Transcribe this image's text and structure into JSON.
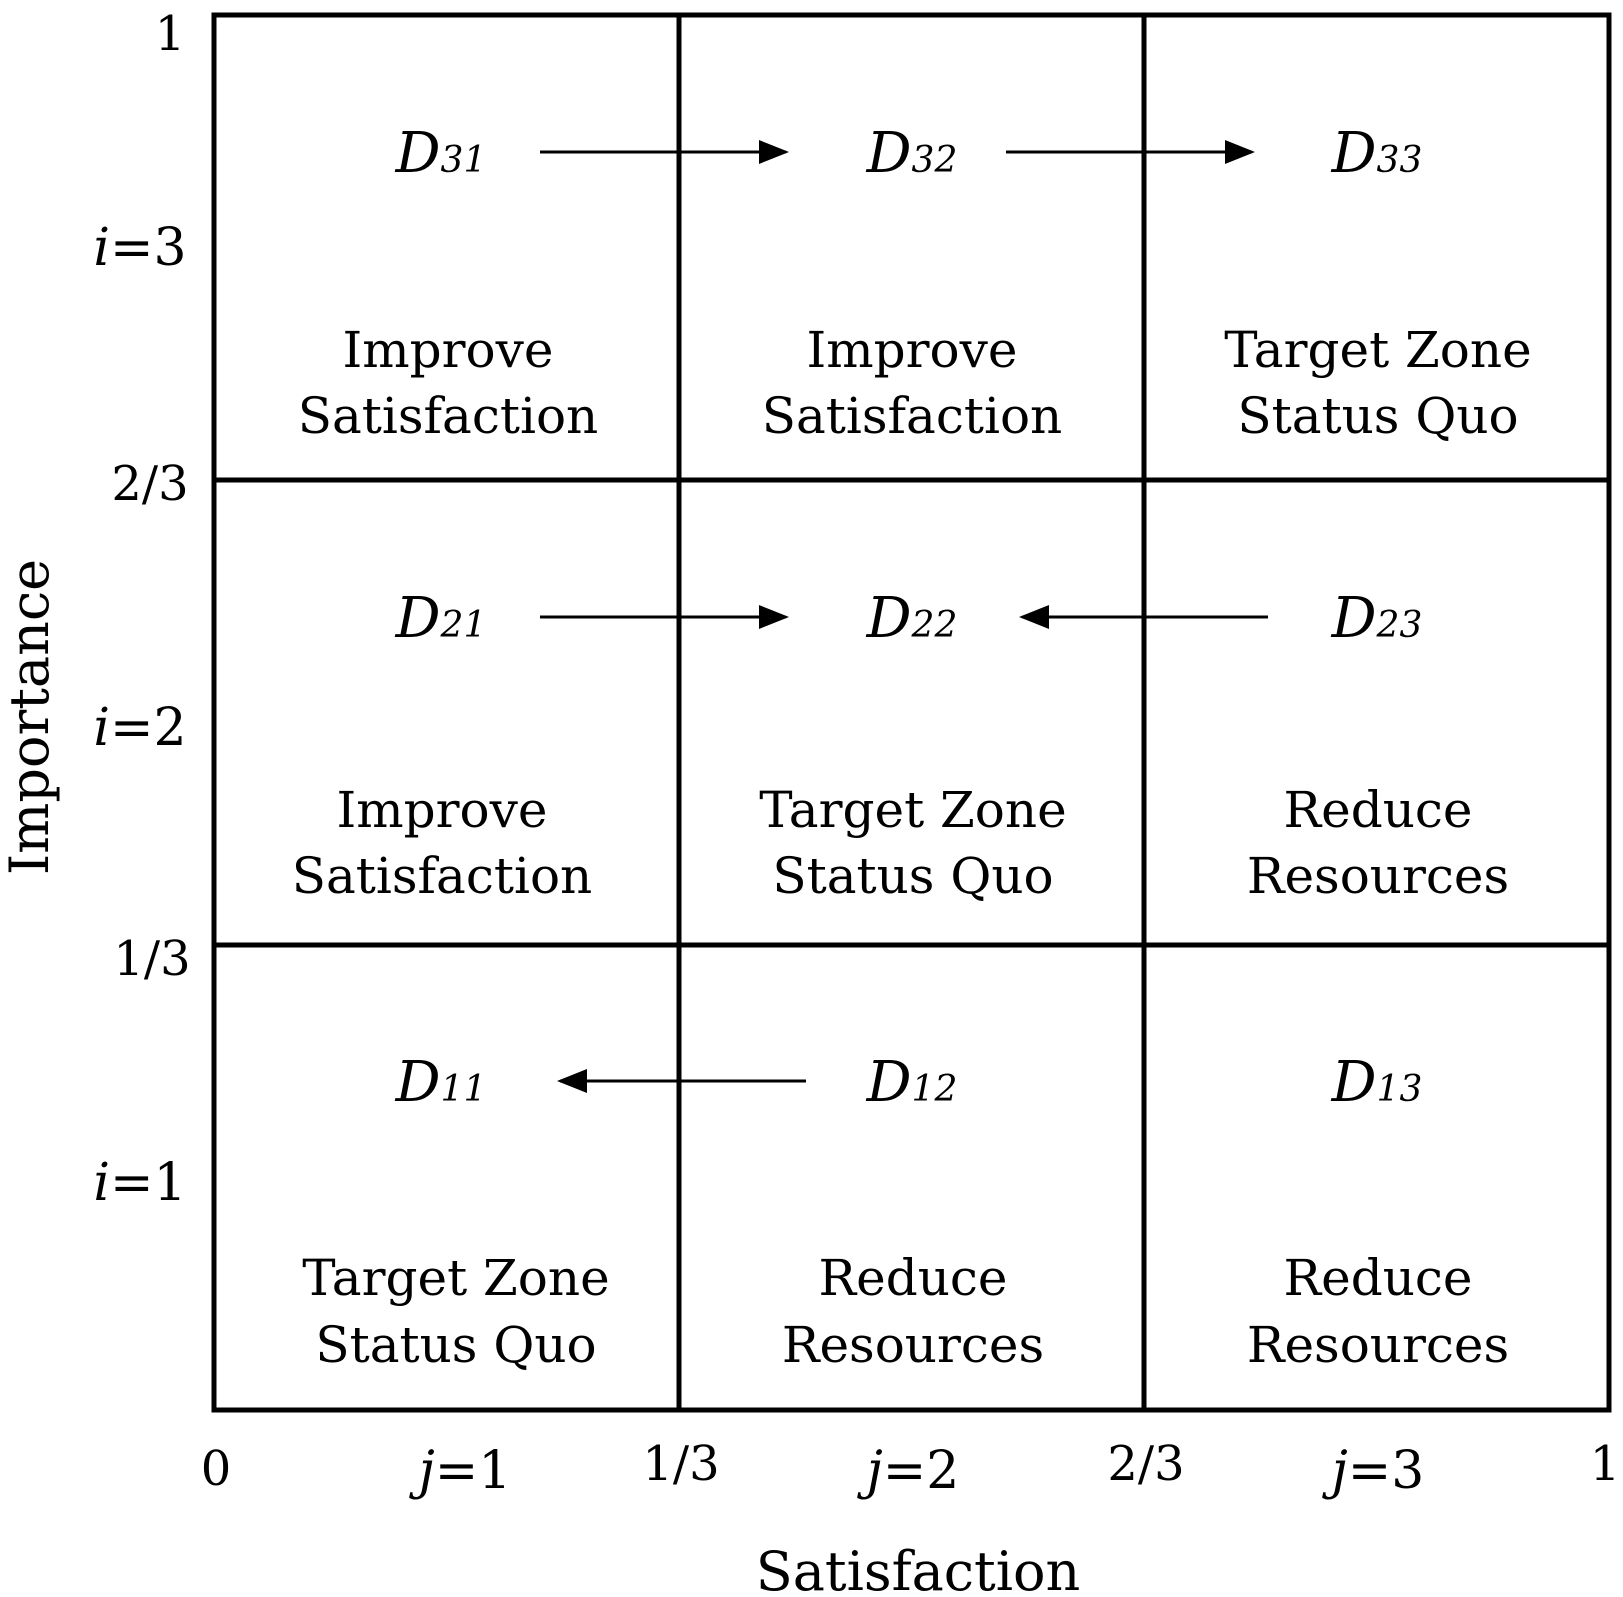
{
  "axes": {
    "x_title": "Satisfaction",
    "y_title": "Importance",
    "x_ticks": [
      "0",
      "1/3",
      "2/3",
      "1"
    ],
    "y_ticks": [
      "1",
      "2/3",
      "1/3"
    ],
    "x_index": [
      {
        "var": "j",
        "eq": "=1"
      },
      {
        "var": "j",
        "eq": "=2"
      },
      {
        "var": "j",
        "eq": "=3"
      }
    ],
    "y_index": [
      {
        "var": "i",
        "eq": "=3"
      },
      {
        "var": "i",
        "eq": "=2"
      },
      {
        "var": "i",
        "eq": "=1"
      }
    ]
  },
  "grid": {
    "rows": [
      [
        {
          "id": "D",
          "sub": "31",
          "line1": "Improve",
          "line2": "Satisfaction"
        },
        {
          "id": "D",
          "sub": "32",
          "line1": "Improve",
          "line2": "Satisfaction"
        },
        {
          "id": "D",
          "sub": "33",
          "line1": "Target Zone",
          "line2": "Status Quo"
        }
      ],
      [
        {
          "id": "D",
          "sub": "21",
          "line1": "Improve",
          "line2": "Satisfaction"
        },
        {
          "id": "D",
          "sub": "22",
          "line1": "Target Zone",
          "line2": "Status Quo"
        },
        {
          "id": "D",
          "sub": "23",
          "line1": "Reduce",
          "line2": "Resources"
        }
      ],
      [
        {
          "id": "D",
          "sub": "11",
          "line1": "Target Zone",
          "line2": "Status Quo"
        },
        {
          "id": "D",
          "sub": "12",
          "line1": "Reduce",
          "line2": "Resources"
        },
        {
          "id": "D",
          "sub": "13",
          "line1": "Reduce",
          "line2": "Resources"
        }
      ]
    ],
    "arrows": [
      {
        "from": "D31",
        "to": "D32"
      },
      {
        "from": "D32",
        "to": "D33"
      },
      {
        "from": "D21",
        "to": "D22"
      },
      {
        "from": "D23",
        "to": "D22"
      },
      {
        "from": "D12",
        "to": "D11"
      }
    ]
  }
}
